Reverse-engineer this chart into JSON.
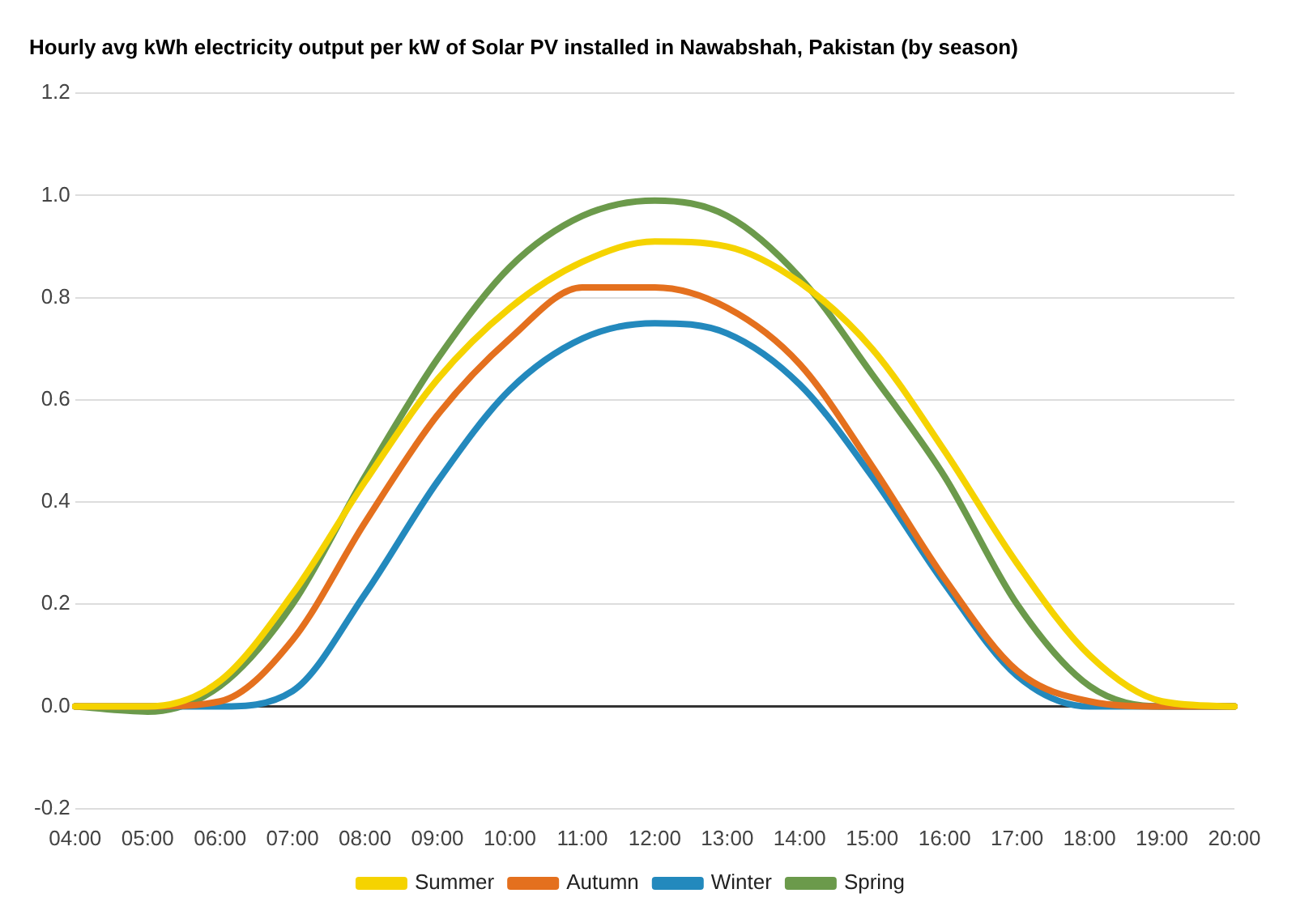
{
  "chart_data": {
    "type": "line",
    "title": "Hourly avg kWh electricity output per kW of Solar PV installed in Nawabshah, Pakistan (by season)",
    "categories": [
      "04:00",
      "05:00",
      "06:00",
      "07:00",
      "08:00",
      "09:00",
      "10:00",
      "11:00",
      "12:00",
      "13:00",
      "14:00",
      "15:00",
      "16:00",
      "17:00",
      "18:00",
      "19:00",
      "20:00"
    ],
    "series": [
      {
        "name": "Summer",
        "color": "#f5d300",
        "values": [
          0,
          0,
          0.05,
          0.22,
          0.44,
          0.64,
          0.78,
          0.87,
          0.91,
          0.9,
          0.83,
          0.7,
          0.5,
          0.28,
          0.1,
          0.01,
          0
        ]
      },
      {
        "name": "Autumn",
        "color": "#e4701e",
        "values": [
          0,
          0,
          0.01,
          0.13,
          0.36,
          0.57,
          0.72,
          0.82,
          0.82,
          0.78,
          0.67,
          0.47,
          0.25,
          0.07,
          0.01,
          0,
          0
        ]
      },
      {
        "name": "Winter",
        "color": "#2389bd",
        "values": [
          0,
          0,
          0,
          0.03,
          0.22,
          0.44,
          0.62,
          0.72,
          0.75,
          0.73,
          0.63,
          0.45,
          0.24,
          0.06,
          0,
          0,
          0
        ]
      },
      {
        "name": "Spring",
        "color": "#6b9a4b",
        "values": [
          0,
          -0.01,
          0.04,
          0.2,
          0.45,
          0.68,
          0.86,
          0.96,
          0.99,
          0.96,
          0.84,
          0.65,
          0.45,
          0.2,
          0.04,
          0,
          0
        ]
      }
    ],
    "ylim": [
      -0.2,
      1.2
    ],
    "yticks": [
      -0.2,
      {
        "value": 0,
        "label": "0.0"
      },
      0.2,
      0.4,
      0.6,
      0.8,
      {
        "value": 1,
        "label": "1.0"
      },
      1.2
    ],
    "grid": "y",
    "legend": "bottom",
    "marker": "none",
    "line_style": "solid"
  }
}
